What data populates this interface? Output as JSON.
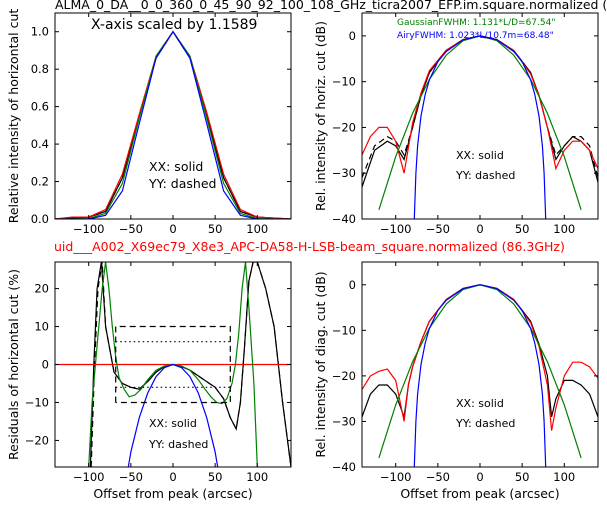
{
  "figure": {
    "top_title": "ALMA_0_DA__0_0_360_0_45_90_92_100_108_GHz_ticra2007_EFP.im.square.normalized (",
    "mid_title": "uid___A002_X69ec79_X8e3_APC-DA58-H-LSB-beam_square.normalized (86.3GHz)",
    "mid_title_color": "#ff0000"
  },
  "colors": {
    "black": "#000000",
    "red": "#ff0000",
    "green": "#008000",
    "blue": "#0000ff"
  },
  "chart_data": [
    {
      "id": "tl",
      "type": "line",
      "xlabel": "",
      "ylabel": "Relative intensity of horizontal cut",
      "xlim": [
        -140,
        140
      ],
      "ylim": [
        0,
        1.1
      ],
      "xticks": [
        -100,
        -50,
        0,
        50,
        100
      ],
      "yticks": [
        0.0,
        0.2,
        0.4,
        0.6,
        0.8,
        1.0
      ],
      "xticklabels": [
        "−100",
        "−50",
        "0",
        "50",
        "100"
      ],
      "yticklabels": [
        "0.0",
        "0.2",
        "0.4",
        "0.6",
        "0.8",
        "1.0"
      ],
      "show_xticklabels": true,
      "annotations": [
        "X-axis scaled by 1.1589",
        "XX: solid",
        "YY: dashed"
      ],
      "series": [
        {
          "color": "#000000",
          "style": "solid",
          "x": [
            -140,
            -120,
            -100,
            -80,
            -60,
            -40,
            -20,
            0,
            20,
            40,
            60,
            80,
            100,
            120,
            140
          ],
          "y": [
            0,
            0.005,
            0.01,
            0.04,
            0.22,
            0.55,
            0.86,
            1.0,
            0.86,
            0.55,
            0.22,
            0.04,
            0.01,
            0.005,
            0
          ]
        },
        {
          "color": "#000000",
          "style": "dashed",
          "x": [
            -140,
            -120,
            -100,
            -80,
            -60,
            -40,
            -20,
            0,
            20,
            40,
            60,
            80,
            100,
            120,
            140
          ],
          "y": [
            0,
            0.005,
            0.01,
            0.04,
            0.22,
            0.55,
            0.86,
            1.0,
            0.86,
            0.55,
            0.22,
            0.04,
            0.01,
            0.005,
            0
          ]
        },
        {
          "color": "#ff0000",
          "style": "solid",
          "x": [
            -140,
            -120,
            -100,
            -80,
            -60,
            -40,
            -20,
            0,
            20,
            40,
            60,
            80,
            100,
            120,
            140
          ],
          "y": [
            0,
            0.01,
            0.01,
            0.05,
            0.24,
            0.56,
            0.87,
            1.0,
            0.87,
            0.57,
            0.24,
            0.05,
            0.01,
            0.005,
            0
          ]
        },
        {
          "color": "#008000",
          "style": "solid",
          "x": [
            -140,
            -120,
            -100,
            -80,
            -60,
            -40,
            -20,
            0,
            20,
            40,
            60,
            80,
            100,
            120,
            140
          ],
          "y": [
            0,
            0.0,
            0.002,
            0.03,
            0.19,
            0.54,
            0.87,
            1.0,
            0.87,
            0.54,
            0.19,
            0.03,
            0.002,
            0.0,
            0
          ]
        },
        {
          "color": "#0000ff",
          "style": "solid",
          "x": [
            -140,
            -120,
            -100,
            -80,
            -60,
            -40,
            -20,
            0,
            20,
            40,
            60,
            80,
            100,
            120,
            140
          ],
          "y": [
            0,
            0.0,
            0.0,
            0.02,
            0.15,
            0.51,
            0.86,
            1.0,
            0.86,
            0.51,
            0.15,
            0.02,
            0.0,
            0.0,
            0
          ]
        }
      ]
    },
    {
      "id": "tr",
      "type": "line",
      "xlabel": "",
      "ylabel": "Rel. intensity of horiz. cut (dB)",
      "xlim": [
        -140,
        140
      ],
      "ylim": [
        -40,
        5
      ],
      "xticks": [
        -100,
        -50,
        0,
        50,
        100
      ],
      "yticks": [
        -40,
        -30,
        -20,
        -10,
        0
      ],
      "xticklabels": [
        "−100",
        "−50",
        "0",
        "50",
        "100"
      ],
      "yticklabels": [
        "−40",
        "−30",
        "−20",
        "−10",
        "0"
      ],
      "show_xticklabels": true,
      "annotations": [
        "XX: solid",
        "YY: dashed"
      ],
      "legend": [
        {
          "text": "GaussianFWHM: 1.131*L/D=67.54\"",
          "color": "#008000"
        },
        {
          "text": "AiryFWHM: 1.023*L/10.7m=68.48\"",
          "color": "#0000ff"
        }
      ],
      "series": [
        {
          "color": "#000000",
          "style": "solid",
          "x": [
            -140,
            -125,
            -110,
            -100,
            -90,
            -80,
            -70,
            -60,
            -40,
            -20,
            0,
            20,
            40,
            60,
            70,
            80,
            90,
            100,
            110,
            120,
            130,
            140
          ],
          "y": [
            -33,
            -25,
            -23,
            -24,
            -27,
            -20,
            -13,
            -8,
            -3.2,
            -0.8,
            0,
            -0.8,
            -3.2,
            -8,
            -13,
            -20,
            -27,
            -24,
            -22,
            -23,
            -25,
            -32
          ]
        },
        {
          "color": "#000000",
          "style": "dashed",
          "x": [
            -140,
            -125,
            -110,
            -100,
            -90,
            -80,
            -70,
            -60,
            -40,
            -20,
            0,
            20,
            40,
            60,
            70,
            80,
            90,
            100,
            110,
            120,
            130,
            140
          ],
          "y": [
            -31,
            -24,
            -22,
            -23,
            -26,
            -20,
            -13,
            -8,
            -3.2,
            -0.8,
            0,
            -0.8,
            -3.2,
            -8,
            -13,
            -20,
            -26,
            -24,
            -22,
            -22,
            -24,
            -31
          ]
        },
        {
          "color": "#ff0000",
          "style": "solid",
          "x": [
            -140,
            -130,
            -120,
            -110,
            -100,
            -90,
            -80,
            -70,
            -60,
            -40,
            -20,
            0,
            20,
            40,
            60,
            70,
            80,
            90,
            100,
            110,
            120,
            130,
            140
          ],
          "y": [
            -26,
            -22,
            -20,
            -20,
            -23,
            -30,
            -19,
            -12.5,
            -7.6,
            -3.1,
            -0.8,
            0,
            -0.8,
            -3.2,
            -8.3,
            -13,
            -20,
            -29,
            -25,
            -23,
            -23,
            -25,
            -29
          ]
        },
        {
          "color": "#008000",
          "style": "solid",
          "x": [
            -120,
            -100,
            -80,
            -60,
            -40,
            -20,
            0,
            20,
            40,
            60,
            80,
            100,
            120
          ],
          "y": [
            -38,
            -26.4,
            -16.9,
            -9.5,
            -4.2,
            -1.05,
            0,
            -1.05,
            -4.2,
            -9.5,
            -16.9,
            -26.4,
            -38
          ]
        },
        {
          "color": "#0000ff",
          "style": "solid",
          "x": [
            -78,
            -76,
            -74,
            -70,
            -65,
            -60,
            -50,
            -40,
            -20,
            0,
            20,
            40,
            50,
            60,
            65,
            70,
            74,
            76,
            78
          ],
          "y": [
            -40,
            -30,
            -24,
            -17.5,
            -12.8,
            -9.6,
            -5.6,
            -3.4,
            -0.85,
            0,
            -0.85,
            -3.4,
            -5.6,
            -9.6,
            -12.8,
            -17.5,
            -24,
            -30,
            -40
          ]
        }
      ]
    },
    {
      "id": "bl",
      "type": "line",
      "xlabel": "Offset from peak (arcsec)",
      "ylabel": "Residuals of horizontal cut (%)",
      "xlim": [
        -140,
        140
      ],
      "ylim": [
        -27,
        27
      ],
      "xticks": [
        -100,
        -50,
        0,
        50,
        100
      ],
      "yticks": [
        -20,
        -10,
        0,
        10,
        20
      ],
      "xticklabels": [
        "−100",
        "−50",
        "0",
        "50",
        "100"
      ],
      "yticklabels": [
        "−20",
        "−10",
        "0",
        "10",
        "20"
      ],
      "show_xticklabels": true,
      "annotations": [
        "XX: solid",
        "YY: dashed"
      ],
      "series": [
        {
          "color": "#000000",
          "style": "solid",
          "x": [
            -98,
            -94,
            -90,
            -85,
            -80,
            -70,
            -60,
            -50,
            -40,
            -30,
            -20,
            -10,
            0,
            10,
            20,
            30,
            40,
            50,
            60,
            68,
            75,
            80,
            85,
            90,
            95,
            100,
            110,
            120,
            130,
            140
          ],
          "y": [
            -27,
            0,
            20,
            27,
            10,
            -2,
            -5,
            -6,
            -6.5,
            -4.5,
            -2,
            -0.5,
            0,
            -0.5,
            -1.5,
            -3,
            -4.5,
            -6,
            -9,
            -14,
            -17,
            -10,
            5,
            22,
            27,
            27,
            20,
            10,
            -10,
            -27
          ]
        },
        {
          "color": "#000000",
          "style": "dashed",
          "x": [
            -97,
            -93,
            -89,
            -84,
            -80,
            -70,
            -60,
            -50,
            -40,
            -30,
            -20,
            -10,
            0,
            10,
            20,
            30,
            40,
            50,
            60,
            68,
            75,
            80,
            85,
            90,
            95,
            100,
            110,
            120,
            130,
            140
          ],
          "y": [
            -27,
            0,
            20,
            27,
            10,
            -2,
            -5,
            -6,
            -6.5,
            -4.5,
            -2,
            -0.5,
            0,
            -0.5,
            -1.5,
            -3,
            -4.5,
            -6,
            -9,
            -14,
            -17,
            -10,
            5,
            22,
            27,
            27,
            20,
            10,
            -10,
            -27
          ]
        },
        {
          "color": "#ff0000",
          "style": "solid",
          "x": [
            -140,
            140
          ],
          "y": [
            0,
            0
          ]
        },
        {
          "color": "#008000",
          "style": "solid",
          "x": [
            -100,
            -96,
            -90,
            -84,
            -80,
            -76,
            -72,
            -68,
            -64,
            -58,
            -52,
            -45,
            -38,
            -30,
            -20,
            -10,
            0,
            10,
            20,
            30,
            38,
            45,
            52,
            58,
            64,
            70,
            74,
            78,
            82,
            86,
            90,
            96,
            100
          ],
          "y": [
            -27,
            -10,
            5,
            20,
            27,
            20,
            10,
            2,
            -3.5,
            -6.5,
            -8.5,
            -8,
            -6.5,
            -4,
            -1.5,
            -0.4,
            0,
            -0.4,
            -1.5,
            -4,
            -6.5,
            -8.5,
            -10,
            -10.3,
            -9,
            -5,
            0,
            8,
            20,
            27,
            15,
            -5,
            -27
          ]
        },
        {
          "color": "#0000ff",
          "style": "solid",
          "x": [
            -53,
            -50,
            -45,
            -40,
            -30,
            -20,
            -10,
            0,
            10,
            20,
            30,
            40,
            45,
            50,
            53
          ],
          "y": [
            -27,
            -23,
            -18.5,
            -14,
            -7.5,
            -3.2,
            -0.8,
            0,
            -0.8,
            -3.2,
            -7.5,
            -14,
            -18.5,
            -23,
            -27
          ]
        },
        {
          "color": "#000000",
          "style": "dashed",
          "x": [
            -68,
            -68,
            68,
            68,
            -68
          ],
          "y": [
            -10,
            10,
            10,
            -10,
            -10
          ]
        },
        {
          "color": "#000000",
          "style": "dotted",
          "x": [
            -68,
            68
          ],
          "y": [
            6,
            6
          ]
        },
        {
          "color": "#000000",
          "style": "dotted",
          "x": [
            -68,
            68
          ],
          "y": [
            -6,
            -6
          ]
        }
      ]
    },
    {
      "id": "br",
      "type": "line",
      "xlabel": "Offset from peak (arcsec)",
      "ylabel": "Rel. intensity of diag. cut (dB)",
      "xlim": [
        -140,
        140
      ],
      "ylim": [
        -40,
        5
      ],
      "xticks": [
        -100,
        -50,
        0,
        50,
        100
      ],
      "yticks": [
        -40,
        -30,
        -20,
        -10,
        0
      ],
      "xticklabels": [
        "−100",
        "−50",
        "0",
        "50",
        "100"
      ],
      "yticklabels": [
        "−40",
        "−30",
        "−20",
        "−10",
        "0"
      ],
      "show_xticklabels": true,
      "annotations": [
        "XX: solid",
        "YY: dashed"
      ],
      "series": [
        {
          "color": "#000000",
          "style": "solid",
          "x": [
            -140,
            -130,
            -120,
            -110,
            -100,
            -90,
            -85,
            -80,
            -70,
            -60,
            -40,
            -20,
            0,
            20,
            40,
            60,
            70,
            80,
            85,
            90,
            100,
            110,
            120,
            130,
            140
          ],
          "y": [
            -29,
            -24,
            -22,
            -22,
            -24,
            -29,
            -22,
            -18,
            -12.5,
            -8,
            -3.2,
            -0.8,
            0,
            -0.8,
            -3.2,
            -8,
            -13,
            -20,
            -29,
            -25,
            -21,
            -21,
            -22,
            -24,
            -29
          ]
        },
        {
          "color": "#ff0000",
          "style": "solid",
          "x": [
            -140,
            -130,
            -120,
            -110,
            -100,
            -90,
            -85,
            -80,
            -70,
            -60,
            -40,
            -20,
            0,
            20,
            40,
            60,
            70,
            80,
            85,
            90,
            100,
            110,
            120,
            130,
            140
          ],
          "y": [
            -23,
            -20,
            -19,
            -18.5,
            -21,
            -30,
            -22,
            -18,
            -12.5,
            -8,
            -3.2,
            -0.8,
            0,
            -0.8,
            -3.2,
            -8.3,
            -13.5,
            -22,
            -32,
            -27,
            -20,
            -17,
            -17,
            -18,
            -20.5
          ]
        },
        {
          "color": "#008000",
          "style": "solid",
          "x": [
            -120,
            -100,
            -80,
            -60,
            -40,
            -20,
            0,
            20,
            40,
            60,
            80,
            100,
            120
          ],
          "y": [
            -38,
            -26.4,
            -16.9,
            -9.5,
            -4.2,
            -1.05,
            0,
            -1.05,
            -4.2,
            -9.5,
            -16.9,
            -26.4,
            -38
          ]
        },
        {
          "color": "#0000ff",
          "style": "solid",
          "x": [
            -78,
            -76,
            -74,
            -70,
            -65,
            -60,
            -50,
            -40,
            -20,
            0,
            20,
            40,
            50,
            60,
            65,
            70,
            74,
            76,
            78
          ],
          "y": [
            -40,
            -30,
            -24,
            -17.5,
            -12.8,
            -9.6,
            -5.6,
            -3.4,
            -0.85,
            0,
            -0.85,
            -3.4,
            -5.6,
            -9.6,
            -12.8,
            -17.5,
            -24,
            -30,
            -40
          ]
        }
      ]
    }
  ]
}
